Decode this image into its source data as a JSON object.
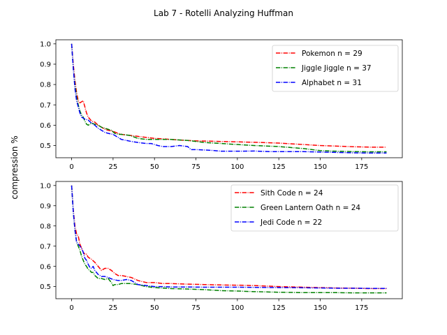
{
  "figure": {
    "title": "Lab 7 - Rotelli Analyzing Huffman",
    "ylabel": "compression %"
  },
  "chart_data": [
    {
      "type": "line",
      "title": "",
      "xlabel": "",
      "ylabel": "compression %",
      "xlim": [
        -9.5,
        199.5
      ],
      "ylim": [
        0.44,
        1.02
      ],
      "xticks": [
        0,
        25,
        50,
        75,
        100,
        125,
        150,
        175
      ],
      "yticks": [
        0.5,
        0.6,
        0.7,
        0.8,
        0.9,
        1.0
      ],
      "ytick_labels": [
        "0.5",
        "0.6",
        "0.7",
        "0.8",
        "0.9",
        "1.0"
      ],
      "grid": false,
      "legend_position": "top-right",
      "series": [
        {
          "name": "Pokemon n = 29",
          "color": "#ff0000",
          "dash": "dashdot",
          "points": [
            [
              0,
              1.0
            ],
            [
              1,
              0.9
            ],
            [
              2,
              0.82
            ],
            [
              3,
              0.76
            ],
            [
              4,
              0.72
            ],
            [
              5,
              0.71
            ],
            [
              6,
              0.715
            ],
            [
              7,
              0.72
            ],
            [
              8,
              0.69
            ],
            [
              9,
              0.66
            ],
            [
              10,
              0.64
            ],
            [
              11,
              0.63
            ],
            [
              12,
              0.62
            ],
            [
              14,
              0.615
            ],
            [
              16,
              0.6
            ],
            [
              18,
              0.59
            ],
            [
              20,
              0.58
            ],
            [
              22,
              0.575
            ],
            [
              25,
              0.57
            ],
            [
              28,
              0.56
            ],
            [
              30,
              0.555
            ],
            [
              35,
              0.55
            ],
            [
              40,
              0.545
            ],
            [
              45,
              0.54
            ],
            [
              50,
              0.535
            ],
            [
              55,
              0.533
            ],
            [
              60,
              0.53
            ],
            [
              65,
              0.527
            ],
            [
              70,
              0.525
            ],
            [
              75,
              0.523
            ],
            [
              80,
              0.522
            ],
            [
              90,
              0.52
            ],
            [
              100,
              0.518
            ],
            [
              110,
              0.516
            ],
            [
              125,
              0.512
            ],
            [
              140,
              0.505
            ],
            [
              150,
              0.5
            ],
            [
              160,
              0.497
            ],
            [
              170,
              0.494
            ],
            [
              180,
              0.492
            ],
            [
              190,
              0.492
            ]
          ]
        },
        {
          "name": "Jiggle Jiggle n = 37",
          "color": "#008000",
          "dash": "dashdot",
          "points": [
            [
              0,
              1.0
            ],
            [
              1,
              0.88
            ],
            [
              2,
              0.8
            ],
            [
              3,
              0.74
            ],
            [
              4,
              0.7
            ],
            [
              5,
              0.67
            ],
            [
              6,
              0.65
            ],
            [
              7,
              0.64
            ],
            [
              8,
              0.62
            ],
            [
              9,
              0.605
            ],
            [
              10,
              0.6
            ],
            [
              12,
              0.61
            ],
            [
              14,
              0.605
            ],
            [
              16,
              0.6
            ],
            [
              18,
              0.59
            ],
            [
              20,
              0.585
            ],
            [
              22,
              0.58
            ],
            [
              24,
              0.575
            ],
            [
              26,
              0.56
            ],
            [
              28,
              0.555
            ],
            [
              30,
              0.555
            ],
            [
              35,
              0.55
            ],
            [
              40,
              0.535
            ],
            [
              45,
              0.53
            ],
            [
              50,
              0.53
            ],
            [
              55,
              0.53
            ],
            [
              60,
              0.53
            ],
            [
              70,
              0.525
            ],
            [
              80,
              0.515
            ],
            [
              90,
              0.51
            ],
            [
              100,
              0.505
            ],
            [
              110,
              0.5
            ],
            [
              125,
              0.495
            ],
            [
              140,
              0.485
            ],
            [
              150,
              0.475
            ],
            [
              160,
              0.472
            ],
            [
              170,
              0.47
            ],
            [
              180,
              0.469
            ],
            [
              190,
              0.469
            ]
          ]
        },
        {
          "name": "Alphabet n = 31",
          "color": "#0000ff",
          "dash": "dashdot",
          "points": [
            [
              0,
              1.0
            ],
            [
              1,
              0.88
            ],
            [
              2,
              0.78
            ],
            [
              3,
              0.72
            ],
            [
              4,
              0.69
            ],
            [
              5,
              0.66
            ],
            [
              6,
              0.64
            ],
            [
              8,
              0.63
            ],
            [
              10,
              0.625
            ],
            [
              12,
              0.61
            ],
            [
              14,
              0.6
            ],
            [
              16,
              0.585
            ],
            [
              18,
              0.575
            ],
            [
              20,
              0.565
            ],
            [
              22,
              0.56
            ],
            [
              25,
              0.555
            ],
            [
              28,
              0.54
            ],
            [
              30,
              0.53
            ],
            [
              33,
              0.525
            ],
            [
              36,
              0.52
            ],
            [
              40,
              0.515
            ],
            [
              45,
              0.51
            ],
            [
              48,
              0.51
            ],
            [
              50,
              0.505
            ],
            [
              52,
              0.5
            ],
            [
              55,
              0.495
            ],
            [
              60,
              0.495
            ],
            [
              65,
              0.5
            ],
            [
              70,
              0.495
            ],
            [
              72,
              0.48
            ],
            [
              75,
              0.48
            ],
            [
              80,
              0.478
            ],
            [
              85,
              0.476
            ],
            [
              90,
              0.472
            ],
            [
              100,
              0.472
            ],
            [
              110,
              0.473
            ],
            [
              120,
              0.47
            ],
            [
              125,
              0.47
            ],
            [
              130,
              0.47
            ],
            [
              140,
              0.47
            ],
            [
              150,
              0.468
            ],
            [
              160,
              0.466
            ],
            [
              170,
              0.464
            ],
            [
              180,
              0.463
            ],
            [
              190,
              0.463
            ]
          ]
        }
      ]
    },
    {
      "type": "line",
      "title": "",
      "xlabel": "",
      "ylabel": "compression %",
      "xlim": [
        -9.5,
        199.5
      ],
      "ylim": [
        0.44,
        1.02
      ],
      "xticks": [
        0,
        25,
        50,
        75,
        100,
        125,
        150,
        175
      ],
      "yticks": [
        0.5,
        0.6,
        0.7,
        0.8,
        0.9,
        1.0
      ],
      "ytick_labels": [
        "0.5",
        "0.6",
        "0.7",
        "0.8",
        "0.9",
        "1.0"
      ],
      "grid": false,
      "legend_position": "top-right",
      "series": [
        {
          "name": "Sith Code n = 24",
          "color": "#ff0000",
          "dash": "dashdot",
          "points": [
            [
              0,
              1.0
            ],
            [
              1,
              0.88
            ],
            [
              2,
              0.8
            ],
            [
              3,
              0.76
            ],
            [
              4,
              0.75
            ],
            [
              5,
              0.71
            ],
            [
              6,
              0.69
            ],
            [
              7,
              0.67
            ],
            [
              8,
              0.66
            ],
            [
              9,
              0.66
            ],
            [
              10,
              0.645
            ],
            [
              12,
              0.635
            ],
            [
              14,
              0.62
            ],
            [
              16,
              0.6
            ],
            [
              18,
              0.58
            ],
            [
              20,
              0.59
            ],
            [
              22,
              0.59
            ],
            [
              24,
              0.58
            ],
            [
              26,
              0.565
            ],
            [
              28,
              0.555
            ],
            [
              30,
              0.555
            ],
            [
              33,
              0.55
            ],
            [
              36,
              0.545
            ],
            [
              40,
              0.53
            ],
            [
              45,
              0.52
            ],
            [
              50,
              0.52
            ],
            [
              55,
              0.515
            ],
            [
              60,
              0.515
            ],
            [
              70,
              0.512
            ],
            [
              80,
              0.51
            ],
            [
              90,
              0.508
            ],
            [
              100,
              0.507
            ],
            [
              110,
              0.505
            ],
            [
              125,
              0.5
            ],
            [
              140,
              0.497
            ],
            [
              150,
              0.495
            ],
            [
              160,
              0.493
            ],
            [
              170,
              0.492
            ],
            [
              180,
              0.49
            ],
            [
              190,
              0.49
            ]
          ]
        },
        {
          "name": "Green Lantern Oath n = 24",
          "color": "#008000",
          "dash": "dashdot",
          "points": [
            [
              0,
              1.0
            ],
            [
              1,
              0.87
            ],
            [
              2,
              0.78
            ],
            [
              3,
              0.72
            ],
            [
              4,
              0.7
            ],
            [
              5,
              0.68
            ],
            [
              6,
              0.65
            ],
            [
              7,
              0.63
            ],
            [
              8,
              0.61
            ],
            [
              9,
              0.6
            ],
            [
              10,
              0.585
            ],
            [
              11,
              0.58
            ],
            [
              12,
              0.57
            ],
            [
              13,
              0.57
            ],
            [
              14,
              0.555
            ],
            [
              16,
              0.54
            ],
            [
              18,
              0.54
            ],
            [
              20,
              0.535
            ],
            [
              22,
              0.54
            ],
            [
              24,
              0.52
            ],
            [
              25,
              0.505
            ],
            [
              26,
              0.51
            ],
            [
              28,
              0.51
            ],
            [
              30,
              0.515
            ],
            [
              35,
              0.515
            ],
            [
              40,
              0.51
            ],
            [
              45,
              0.5
            ],
            [
              50,
              0.495
            ],
            [
              60,
              0.49
            ],
            [
              70,
              0.488
            ],
            [
              80,
              0.485
            ],
            [
              90,
              0.48
            ],
            [
              100,
              0.478
            ],
            [
              110,
              0.475
            ],
            [
              125,
              0.472
            ],
            [
              140,
              0.47
            ],
            [
              150,
              0.47
            ],
            [
              160,
              0.47
            ],
            [
              170,
              0.469
            ],
            [
              180,
              0.469
            ],
            [
              190,
              0.469
            ]
          ]
        },
        {
          "name": "Jedi Code n = 22",
          "color": "#0000ff",
          "dash": "dashdot",
          "points": [
            [
              0,
              1.0
            ],
            [
              1,
              0.87
            ],
            [
              2,
              0.78
            ],
            [
              3,
              0.72
            ],
            [
              4,
              0.71
            ],
            [
              5,
              0.7
            ],
            [
              6,
              0.69
            ],
            [
              7,
              0.67
            ],
            [
              8,
              0.64
            ],
            [
              9,
              0.63
            ],
            [
              10,
              0.61
            ],
            [
              11,
              0.595
            ],
            [
              12,
              0.59
            ],
            [
              13,
              0.6
            ],
            [
              14,
              0.58
            ],
            [
              16,
              0.56
            ],
            [
              18,
              0.55
            ],
            [
              20,
              0.55
            ],
            [
              22,
              0.545
            ],
            [
              25,
              0.535
            ],
            [
              28,
              0.53
            ],
            [
              30,
              0.53
            ],
            [
              33,
              0.535
            ],
            [
              36,
              0.53
            ],
            [
              40,
              0.51
            ],
            [
              45,
              0.505
            ],
            [
              50,
              0.5
            ],
            [
              55,
              0.5
            ],
            [
              60,
              0.498
            ],
            [
              70,
              0.498
            ],
            [
              80,
              0.497
            ],
            [
              90,
              0.497
            ],
            [
              100,
              0.497
            ],
            [
              110,
              0.496
            ],
            [
              125,
              0.495
            ],
            [
              140,
              0.494
            ],
            [
              150,
              0.493
            ],
            [
              160,
              0.492
            ],
            [
              170,
              0.492
            ],
            [
              180,
              0.491
            ],
            [
              190,
              0.491
            ]
          ]
        }
      ]
    }
  ]
}
